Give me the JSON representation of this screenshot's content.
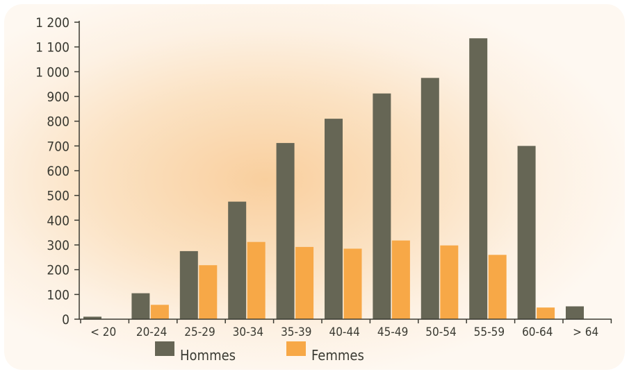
{
  "chart_data": {
    "type": "bar",
    "title": "",
    "xlabel": "",
    "ylabel": "",
    "categories": [
      "< 20",
      "20-24",
      "25-29",
      "30-34",
      "35-39",
      "40-44",
      "45-49",
      "50-54",
      "55-59",
      "60-64",
      "> 64"
    ],
    "y_ticks": [
      "0",
      "100",
      "200",
      "300",
      "400",
      "500",
      "600",
      "700",
      "800",
      "900",
      "1 000",
      "1 100",
      "1 200"
    ],
    "ylim": [
      0,
      1200
    ],
    "grid": false,
    "legend_position": "bottom-center",
    "series": [
      {
        "name": "Hommes",
        "color": "#666655",
        "values": [
          10,
          105,
          275,
          475,
          712,
          810,
          912,
          975,
          1135,
          700,
          52
        ]
      },
      {
        "name": "Femmes",
        "color": "#f7a847",
        "values": [
          0,
          58,
          218,
          312,
          292,
          285,
          318,
          298,
          260,
          47,
          0
        ]
      }
    ]
  }
}
